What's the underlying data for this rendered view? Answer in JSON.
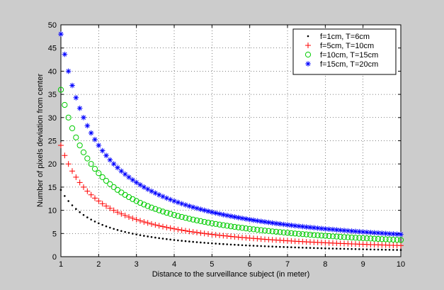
{
  "chart_data": {
    "type": "scatter",
    "title": "",
    "xlabel": "Distance to the surveillance subject (in meter)",
    "ylabel": "Number of pixels deviation from center",
    "xlim": [
      1,
      10
    ],
    "ylim": [
      0,
      50
    ],
    "xticks": [
      1,
      2,
      3,
      4,
      5,
      6,
      7,
      8,
      9,
      10
    ],
    "yticks": [
      0,
      5,
      10,
      15,
      20,
      25,
      30,
      35,
      40,
      45,
      50
    ],
    "grid": true,
    "legend_position": "top-right",
    "x_start": 1.0,
    "x_end": 10.0,
    "x_step": 0.1,
    "series": [
      {
        "name": "f=1cm, T=6cm",
        "coefficient": 14.4,
        "marker": "dot",
        "color": "#000000"
      },
      {
        "name": "f=5cm, T=10cm",
        "coefficient": 24,
        "marker": "plus",
        "color": "#ff0000"
      },
      {
        "name": "f=10cm, T=15cm",
        "coefficient": 36,
        "marker": "circle",
        "color": "#00cc00"
      },
      {
        "name": "f=15cm, T=20cm",
        "coefficient": 48,
        "marker": "asterisk",
        "color": "#0000ff"
      }
    ]
  }
}
